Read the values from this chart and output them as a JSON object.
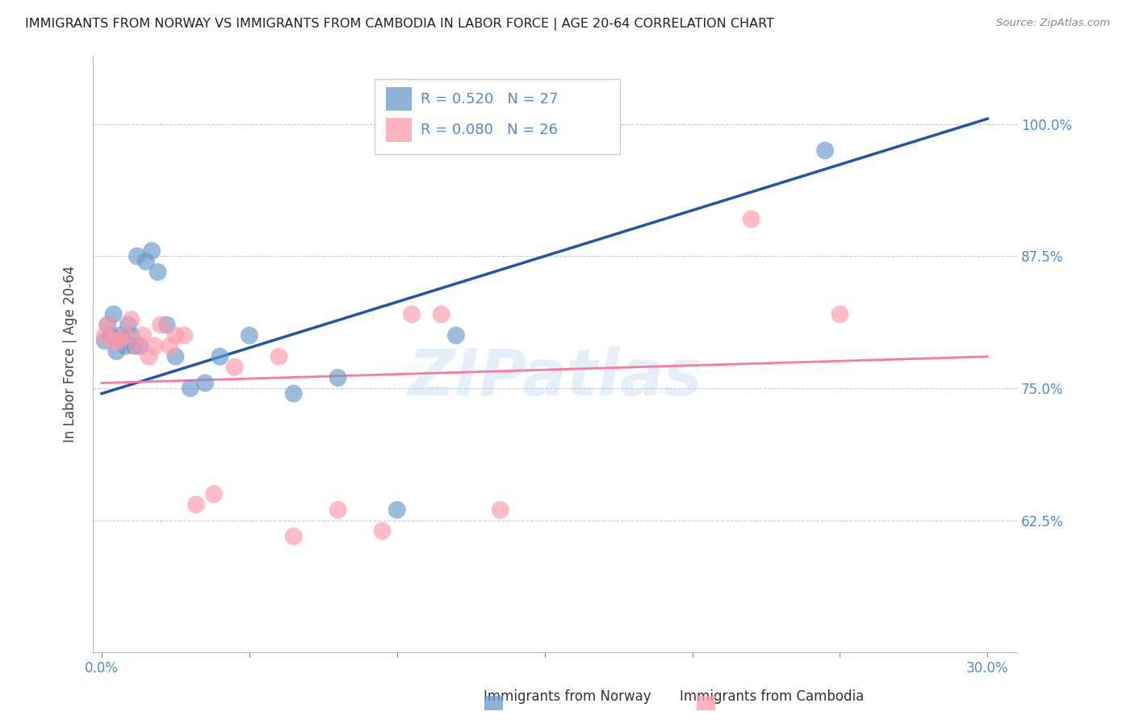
{
  "title": "IMMIGRANTS FROM NORWAY VS IMMIGRANTS FROM CAMBODIA IN LABOR FORCE | AGE 20-64 CORRELATION CHART",
  "source": "Source: ZipAtlas.com",
  "ylabel": "In Labor Force | Age 20-64",
  "yticks": [
    0.625,
    0.75,
    0.875,
    1.0
  ],
  "ytick_labels": [
    "62.5%",
    "75.0%",
    "87.5%",
    "100.0%"
  ],
  "xticks": [
    0.0,
    0.05,
    0.1,
    0.15,
    0.2,
    0.25,
    0.3
  ],
  "xlim": [
    -0.003,
    0.31
  ],
  "ylim": [
    0.5,
    1.065
  ],
  "watermark": "ZIPatlas",
  "norway_color": "#6699CC",
  "cambodia_color": "#FF99AA",
  "norway_line_color": "#2255AA",
  "cambodia_line_color": "#FF7799",
  "norway_R": 0.52,
  "norway_N": 27,
  "cambodia_R": 0.08,
  "cambodia_N": 26,
  "legend_label_norway": "Immigrants from Norway",
  "legend_label_cambodia": "Immigrants from Cambodia",
  "norway_x": [
    0.001,
    0.002,
    0.003,
    0.004,
    0.005,
    0.006,
    0.007,
    0.008,
    0.009,
    0.01,
    0.011,
    0.012,
    0.013,
    0.015,
    0.017,
    0.019,
    0.022,
    0.025,
    0.03,
    0.035,
    0.04,
    0.05,
    0.065,
    0.08,
    0.1,
    0.12,
    0.245
  ],
  "norway_y": [
    0.795,
    0.81,
    0.8,
    0.82,
    0.785,
    0.8,
    0.795,
    0.79,
    0.81,
    0.8,
    0.79,
    0.875,
    0.79,
    0.87,
    0.88,
    0.86,
    0.81,
    0.78,
    0.75,
    0.755,
    0.78,
    0.8,
    0.745,
    0.76,
    0.635,
    0.8,
    0.975
  ],
  "cambodia_x": [
    0.001,
    0.002,
    0.004,
    0.006,
    0.008,
    0.01,
    0.012,
    0.014,
    0.016,
    0.018,
    0.02,
    0.023,
    0.025,
    0.028,
    0.032,
    0.038,
    0.045,
    0.065,
    0.08,
    0.095,
    0.115,
    0.135,
    0.22,
    0.25,
    0.06,
    0.105
  ],
  "cambodia_y": [
    0.8,
    0.81,
    0.795,
    0.795,
    0.8,
    0.815,
    0.79,
    0.8,
    0.78,
    0.79,
    0.81,
    0.79,
    0.8,
    0.8,
    0.64,
    0.65,
    0.77,
    0.61,
    0.635,
    0.615,
    0.82,
    0.635,
    0.91,
    0.82,
    0.78,
    0.82
  ],
  "tick_color": "#5588CC",
  "grid_color": "#CCCCCC",
  "norway_line_x0": 0.0,
  "norway_line_y0": 0.745,
  "norway_line_x1": 0.3,
  "norway_line_y1": 1.005,
  "cambodia_line_x0": 0.0,
  "cambodia_line_y0": 0.755,
  "cambodia_line_x1": 0.3,
  "cambodia_line_y1": 0.78
}
